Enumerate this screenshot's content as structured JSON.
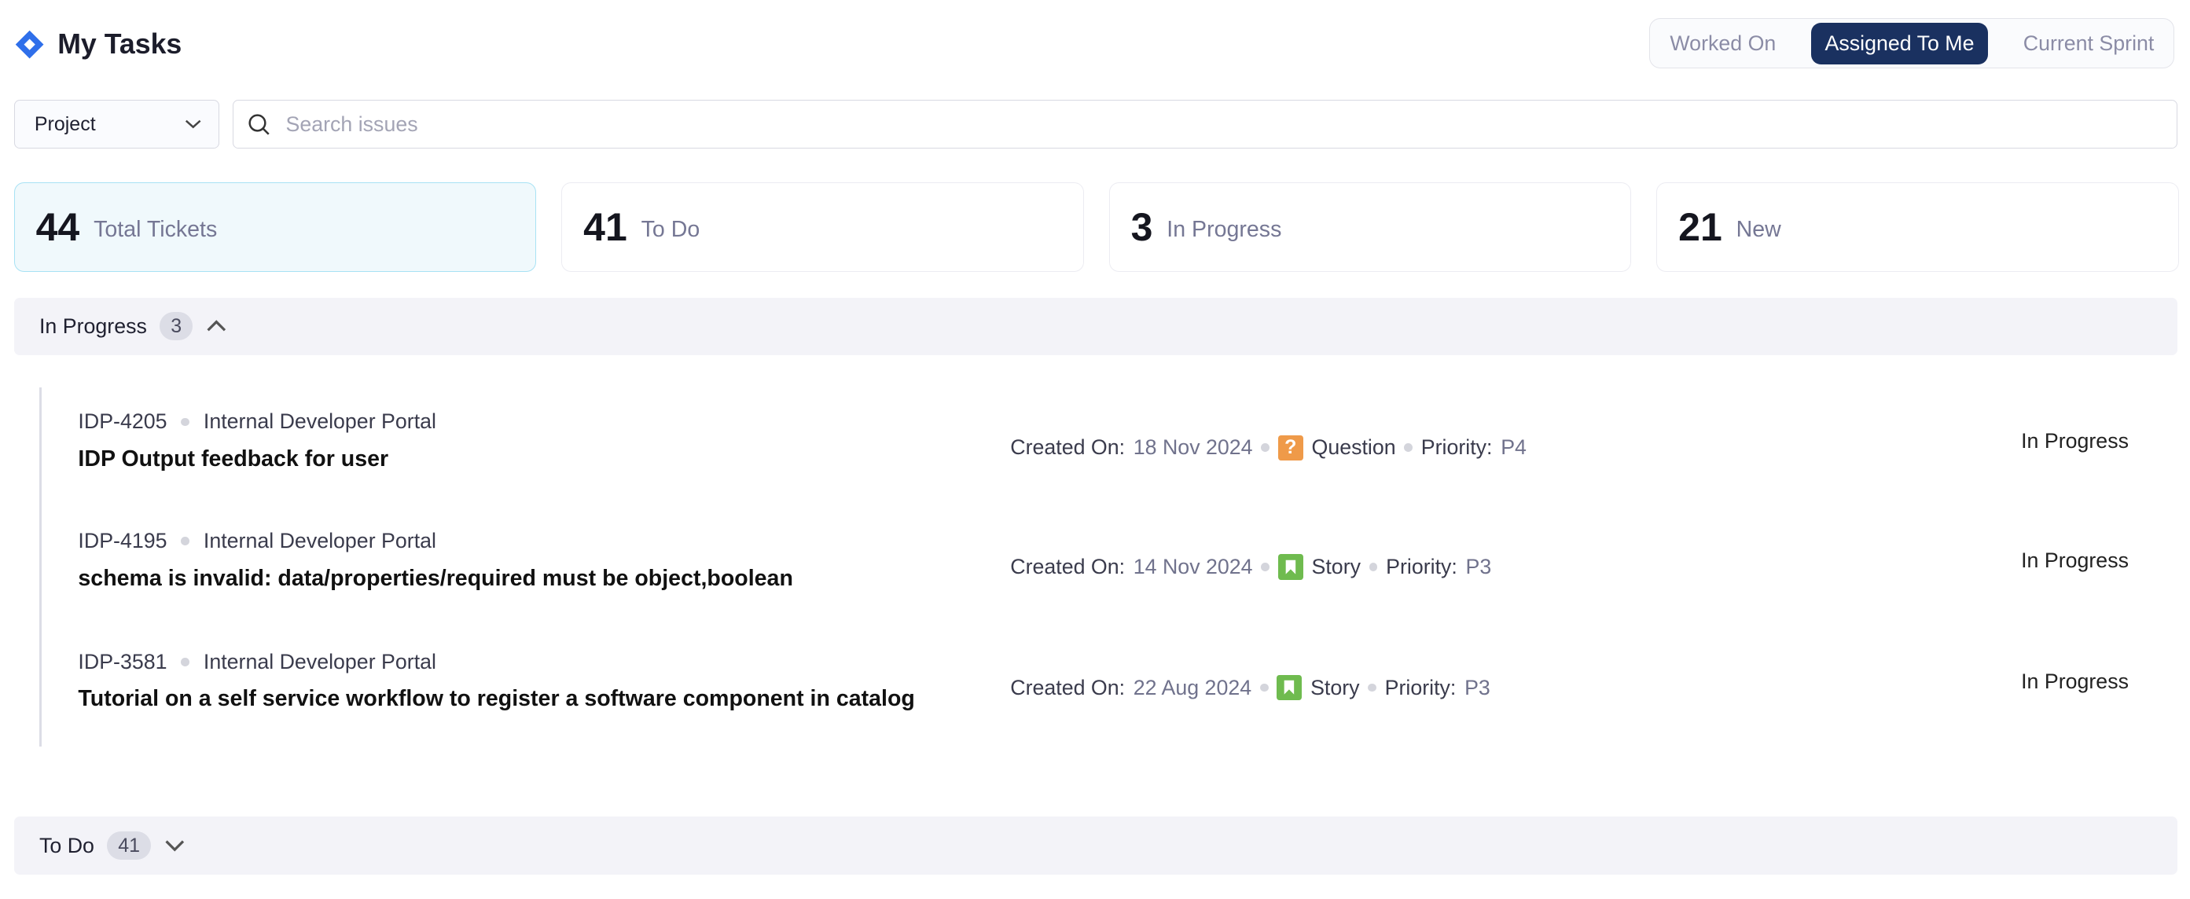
{
  "header": {
    "title": "My Tasks",
    "logo_icon": "jira-diamond-icon",
    "brand_color": "#2f6fea"
  },
  "view_toggle": {
    "options": [
      "Worked On",
      "Assigned To Me",
      "Current Sprint"
    ],
    "active": "Assigned To Me",
    "active_color": "#1a3160"
  },
  "filters": {
    "project_label": "Project",
    "search_placeholder": "Search issues",
    "search_value": ""
  },
  "stats": [
    {
      "count": "44",
      "label": "Total Tickets",
      "selected": true
    },
    {
      "count": "41",
      "label": "To Do"
    },
    {
      "count": "3",
      "label": "In Progress"
    },
    {
      "count": "21",
      "label": "New"
    }
  ],
  "sections": [
    {
      "title": "In Progress",
      "count": "3",
      "expanded": true,
      "items": [
        {
          "key": "IDP-4205",
          "project": "Internal Developer Portal",
          "title": "IDP Output feedback for user",
          "created_label": "Created On:",
          "created": "18 Nov 2024",
          "type": "Question",
          "type_icon": "question-icon",
          "type_color": "#ef9a49",
          "priority_label": "Priority:",
          "priority": "P4",
          "status": "In Progress"
        },
        {
          "key": "IDP-4195",
          "project": "Internal Developer Portal",
          "title": "schema is invalid: data/properties/required must be object,boolean",
          "created_label": "Created On:",
          "created": "14 Nov 2024",
          "type": "Story",
          "type_icon": "bookmark-icon",
          "type_color": "#6fbb4f",
          "priority_label": "Priority:",
          "priority": "P3",
          "status": "In Progress"
        },
        {
          "key": "IDP-3581",
          "project": "Internal Developer Portal",
          "title": "Tutorial on a self service workflow to register a software component in catalog",
          "created_label": "Created On:",
          "created": "22 Aug 2024",
          "type": "Story",
          "type_icon": "bookmark-icon",
          "type_color": "#6fbb4f",
          "priority_label": "Priority:",
          "priority": "P3",
          "status": "In Progress"
        }
      ]
    },
    {
      "title": "To Do",
      "count": "41",
      "expanded": false
    }
  ]
}
